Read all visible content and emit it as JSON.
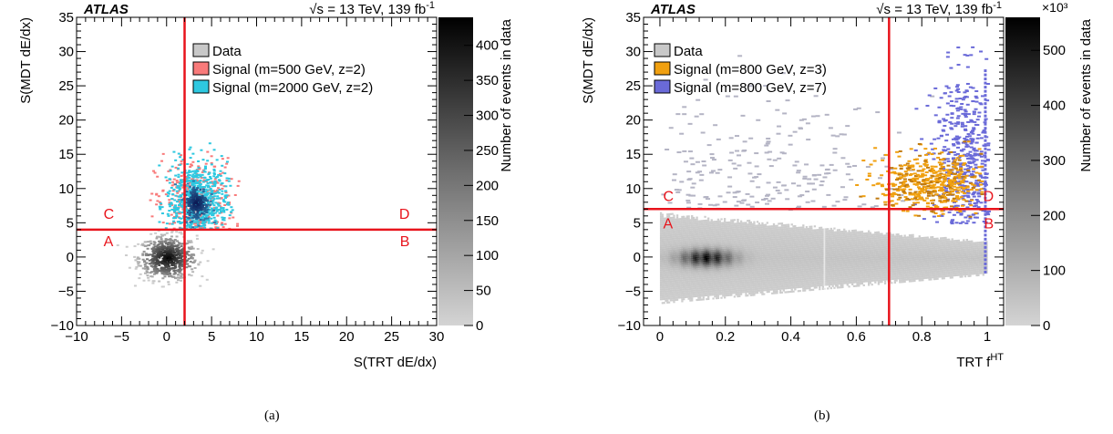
{
  "chart_data": [
    {
      "type": "heatmap",
      "panel_label": "(a)",
      "atlas_label": "ATLAS",
      "energy_label": "√s = 13 TeV, 139 fb",
      "lumi_sup": "-1",
      "xlabel": "S(TRT dE/dx)",
      "xlabel_sup": "",
      "ylabel": "S(MDT dE/dx)",
      "zlabel": "Number of events in data",
      "zmultiplier": "",
      "xlim": [
        -10,
        30
      ],
      "ylim": [
        -10,
        35
      ],
      "zlim": [
        0,
        440
      ],
      "xticks": [
        -10,
        -5,
        0,
        5,
        10,
        15,
        20,
        25,
        30
      ],
      "xtick_labels": [
        "−10",
        "−5",
        "0",
        "5",
        "10",
        "15",
        "20",
        "25",
        "30"
      ],
      "yticks": [
        -10,
        -5,
        0,
        5,
        10,
        15,
        20,
        25,
        30,
        35
      ],
      "ytick_labels": [
        "−10",
        "−5",
        "0",
        "5",
        "10",
        "15",
        "20",
        "25",
        "30",
        "35"
      ],
      "zticks": [
        0,
        50,
        100,
        150,
        200,
        250,
        300,
        350,
        400
      ],
      "ztick_labels": [
        "0",
        "50",
        "100",
        "150",
        "200",
        "250",
        "300",
        "350",
        "400"
      ],
      "cut_x": 2,
      "cut_y": 4,
      "cut_color": "#e8141c",
      "regions": [
        {
          "label": "A",
          "x": -7,
          "y": 1.6
        },
        {
          "label": "B",
          "x": 27,
          "y": 1.6
        },
        {
          "label": "C",
          "x": -7,
          "y": 5.6
        },
        {
          "label": "D",
          "x": 27,
          "y": 5.6
        }
      ],
      "legend": [
        {
          "label": "Data",
          "color": "#c8c8c8"
        },
        {
          "label": "Signal (m=500 GeV, z=2)",
          "color": "#f87a7a"
        },
        {
          "label": "Signal (m=2000 GeV, z=2)",
          "color": "#2ec8e0"
        }
      ],
      "distributions": [
        {
          "name": "data",
          "kind": "gray",
          "cx": 0,
          "cy": 0,
          "sx": 1.6,
          "sy": 1.6,
          "n": 650,
          "xmin": -6,
          "xmax": 7,
          "ymin": -4.5,
          "ymax": 4.2
        },
        {
          "name": "signal_500_z2",
          "color": "#f87a7a",
          "cx": 3,
          "cy": 8,
          "sx": 2.2,
          "sy": 3.2,
          "n": 380,
          "xmin": -2,
          "xmax": 8,
          "ymin": 4.2,
          "ymax": 24
        },
        {
          "name": "signal_2000_z2",
          "color": "#2ec8e0",
          "cx": 3.2,
          "cy": 8,
          "sx": 1.7,
          "sy": 3.0,
          "n": 680,
          "xmin": -1,
          "xmax": 7.5,
          "ymin": 4.2,
          "ymax": 24,
          "core": true
        }
      ]
    },
    {
      "type": "heatmap",
      "panel_label": "(b)",
      "atlas_label": "ATLAS",
      "energy_label": "√s = 13 TeV, 139 fb",
      "lumi_sup": "-1",
      "xlabel": "TRT f",
      "xlabel_sup": "HT",
      "ylabel": "S(MDT dE/dx)",
      "zlabel": "Number of events in data",
      "zmultiplier": "×10³",
      "xlim": [
        -0.05,
        1.05
      ],
      "ylim": [
        -10,
        35
      ],
      "zlim": [
        0,
        560
      ],
      "xticks": [
        0,
        0.2,
        0.4,
        0.6,
        0.8,
        1
      ],
      "xtick_labels": [
        "0",
        "0.2",
        "0.4",
        "0.6",
        "0.8",
        "1"
      ],
      "yticks": [
        -10,
        -5,
        0,
        5,
        10,
        15,
        20,
        25,
        30,
        35
      ],
      "ytick_labels": [
        "−10",
        "−5",
        "0",
        "5",
        "10",
        "15",
        "20",
        "25",
        "30",
        "35"
      ],
      "zticks": [
        0,
        100,
        200,
        300,
        400,
        500
      ],
      "ztick_labels": [
        "0",
        "100",
        "200",
        "300",
        "400",
        "500"
      ],
      "cut_x": 0.7,
      "cut_y": 7,
      "cut_color": "#e8141c",
      "regions": [
        {
          "label": "A",
          "x": 0.01,
          "y": 4.2
        },
        {
          "label": "B",
          "x": 1.02,
          "y": 4.2
        },
        {
          "label": "C",
          "x": 0.01,
          "y": 8.2
        },
        {
          "label": "D",
          "x": 1.02,
          "y": 8.2
        }
      ],
      "legend": [
        {
          "label": "Data",
          "color": "#c8c8c8"
        },
        {
          "label": "Signal (m=800 GeV, z=3)",
          "color": "#f0a010"
        },
        {
          "label": "Signal (m=800 GeV, z=7)",
          "color": "#6a6ad8"
        }
      ],
      "distributions": [
        {
          "name": "data_scatter",
          "kind": "outline",
          "cx": 0.3,
          "cy": 7,
          "sx": 0.22,
          "sy": 8,
          "n": 260,
          "xmin": 0,
          "xmax": 1,
          "ymin": 6,
          "ymax": 33
        },
        {
          "name": "signal_800_z3",
          "color": "#f0a010",
          "cx": 0.82,
          "cy": 11,
          "sx": 0.08,
          "sy": 2.2,
          "n": 520,
          "xmin": 0.55,
          "xmax": 0.98,
          "ymin": 6,
          "ymax": 17
        },
        {
          "name": "signal_800_z7",
          "color": "#6a6ad8",
          "cx": 0.93,
          "cy": 14,
          "sx": 0.05,
          "sy": 6.5,
          "n": 520,
          "xmin": 0.7,
          "xmax": 1.0,
          "ymin": 5,
          "ymax": 33
        }
      ]
    }
  ]
}
